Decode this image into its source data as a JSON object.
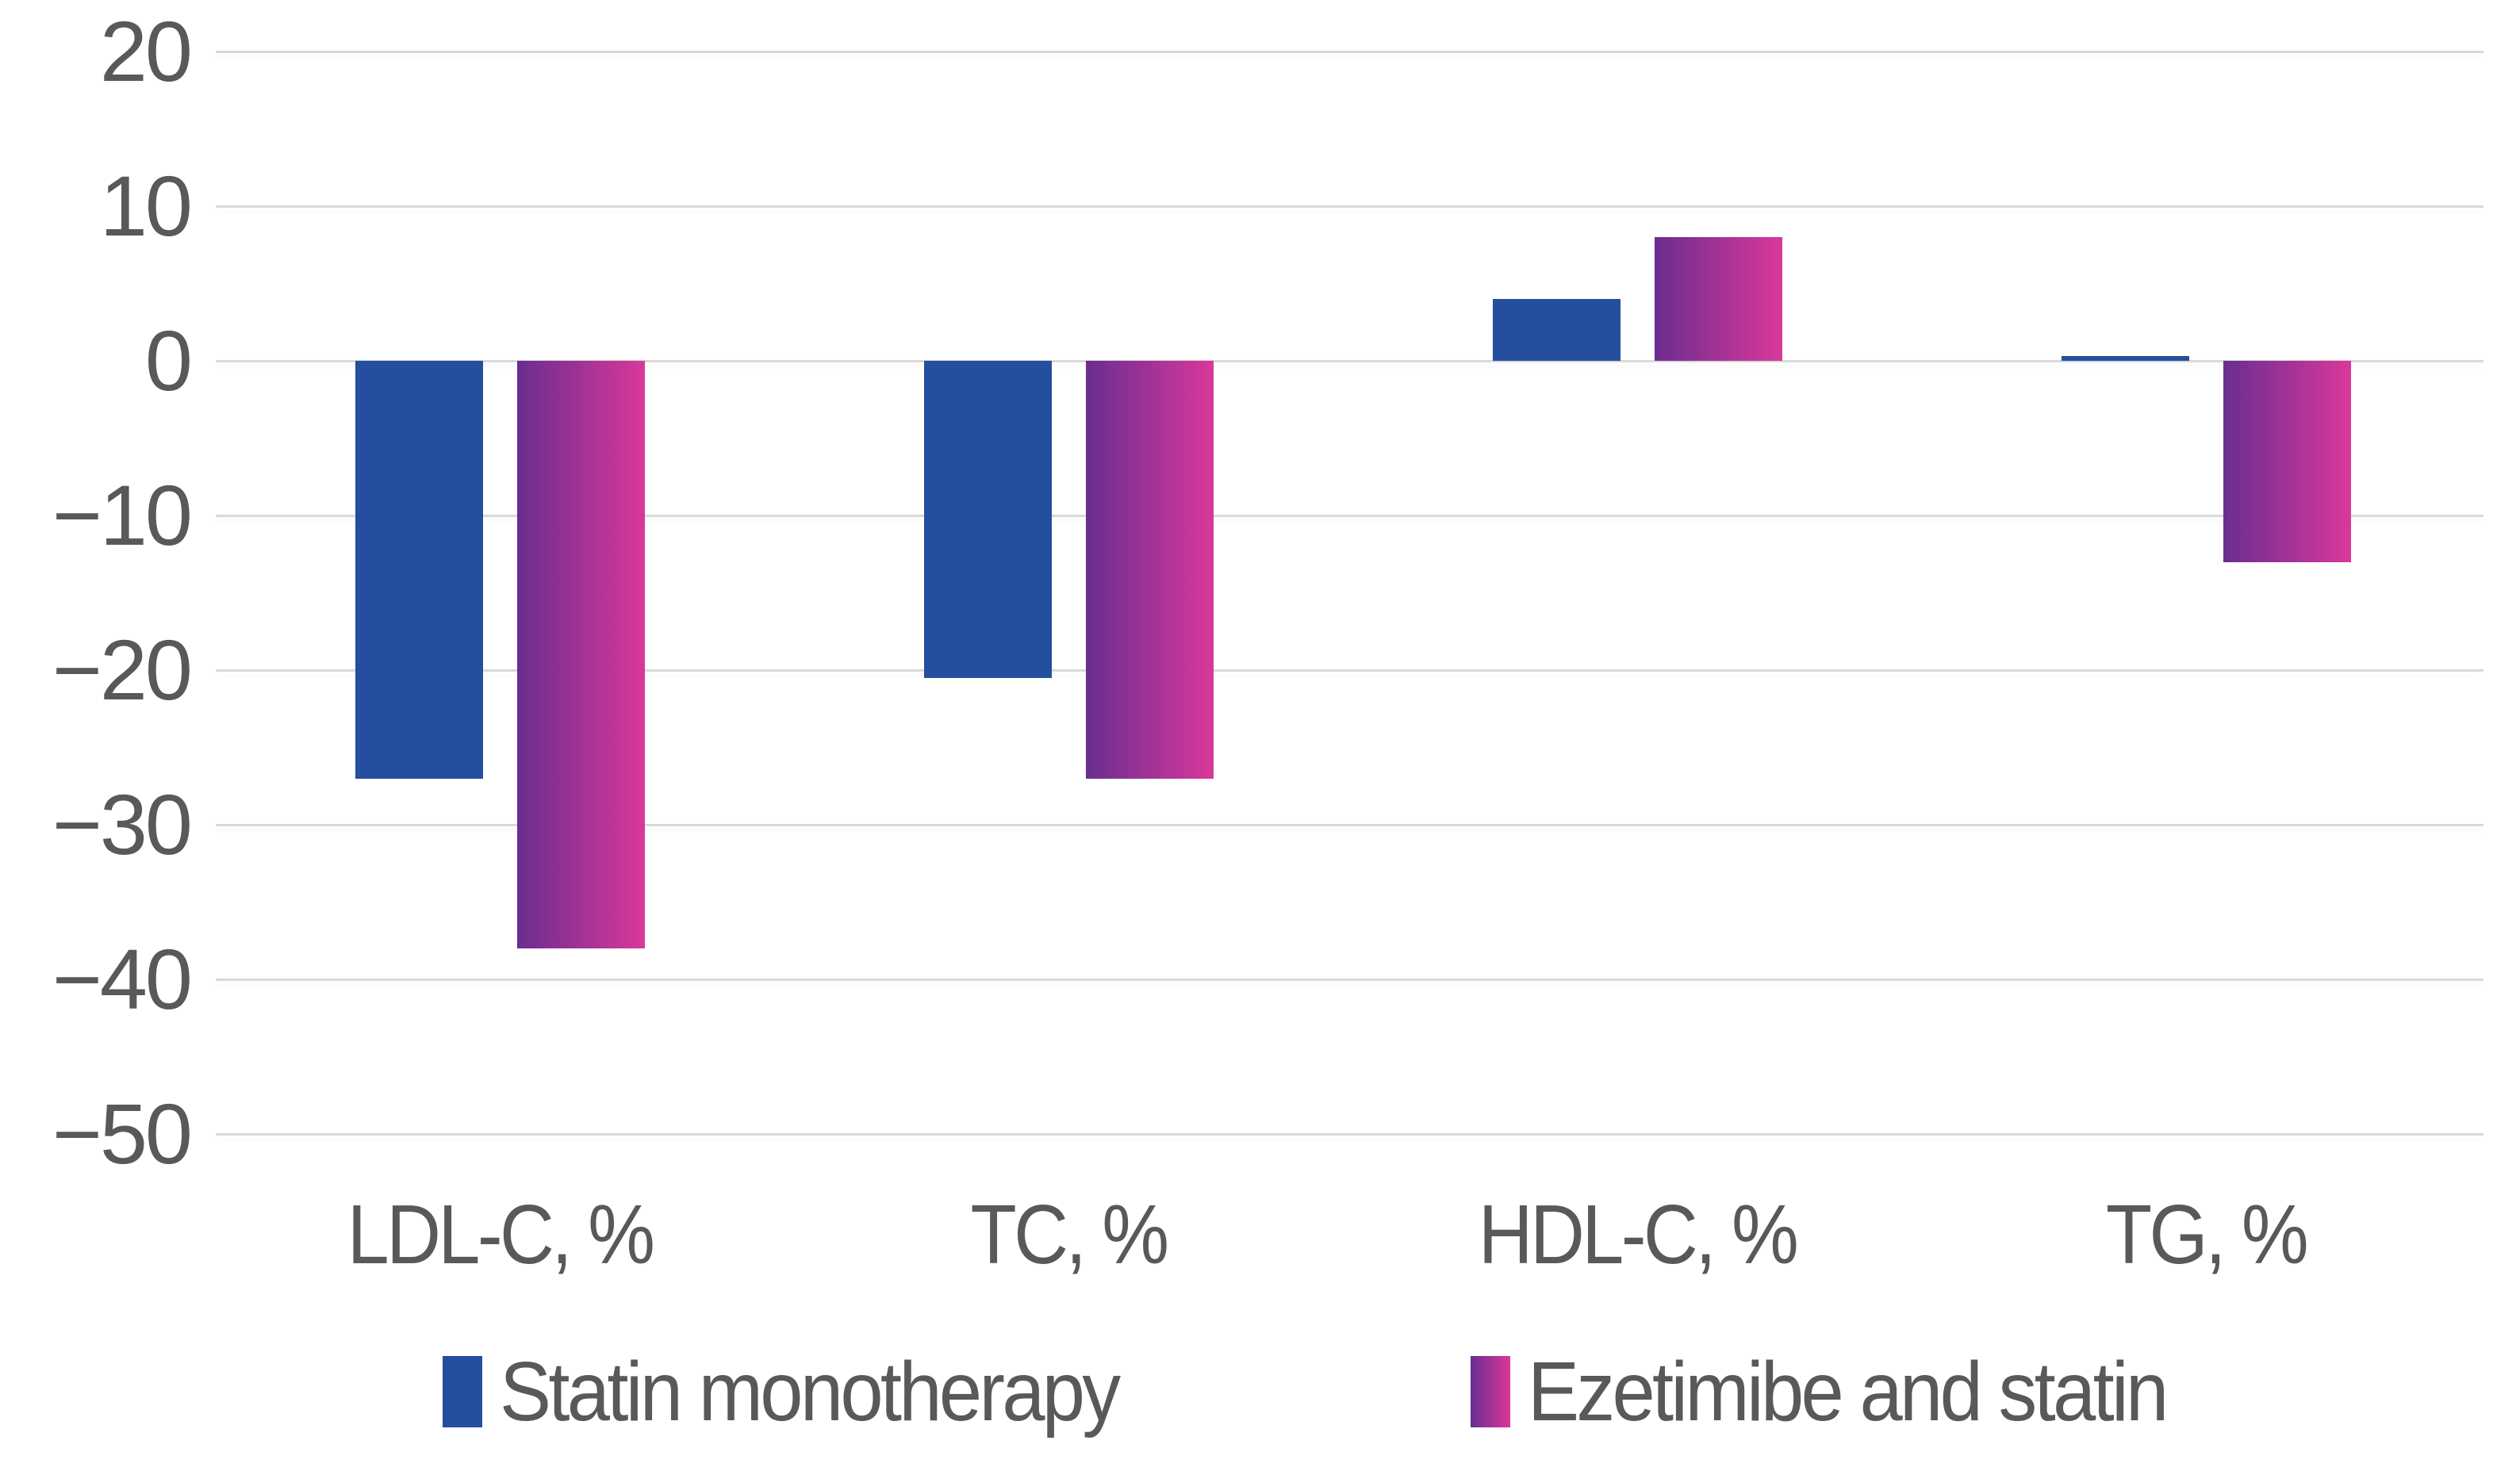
{
  "chart_data": {
    "type": "bar",
    "title": "",
    "xlabel": "",
    "ylabel": "",
    "categories": [
      "LDL-C, %",
      "TC, %",
      "HDL-C, %",
      "TG, %"
    ],
    "series": [
      {
        "name": "Statin monotherapy",
        "color": "#234F9E",
        "values": [
          -27,
          -20.5,
          4,
          0.3
        ]
      },
      {
        "name": "Ezetimibe and statin",
        "gradient": [
          "#6A2D90",
          "#D9389A"
        ],
        "values": [
          -38,
          -27,
          8,
          -13
        ]
      }
    ],
    "yaxis": {
      "ylim": [
        -50,
        20
      ],
      "tick_interval": 10,
      "tick_values": [
        20,
        10,
        0,
        -10,
        -20,
        -30,
        -40,
        -50
      ],
      "tick_labels": [
        "20",
        "10",
        "0",
        "−10",
        "−20",
        "−30",
        "−40",
        "−50"
      ]
    },
    "grid": true,
    "legend_position": "bottom"
  },
  "colors": {
    "background": "#FFFFFF",
    "gridline": "#D9D9D9",
    "text": "#595959"
  }
}
